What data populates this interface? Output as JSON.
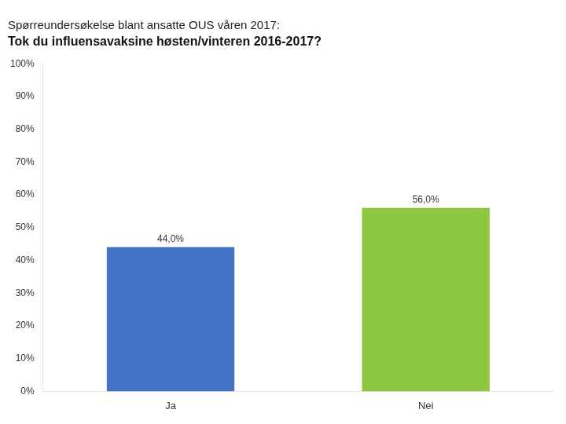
{
  "chart_data": {
    "type": "bar",
    "title": "Spørreundersøkelse blant ansatte OUS våren 2017:",
    "subtitle": "Tok du influensavaksine høsten/vinteren 2016-2017?",
    "categories": [
      "Ja",
      "Nei"
    ],
    "values": [
      44.0,
      56.0
    ],
    "value_labels": [
      "44,0%",
      "56,0%"
    ],
    "data_labels": true,
    "colors": [
      "#4472C4",
      "#8DC63F"
    ],
    "ylim": [
      0,
      100
    ],
    "yticks": [
      {
        "value": 0,
        "label": "0%"
      },
      {
        "value": 10,
        "label": "10%"
      },
      {
        "value": 20,
        "label": "20%"
      },
      {
        "value": 30,
        "label": "30%"
      },
      {
        "value": 40,
        "label": "40%"
      },
      {
        "value": 50,
        "label": "50%"
      },
      {
        "value": 60,
        "label": "60%"
      },
      {
        "value": 70,
        "label": "70%"
      },
      {
        "value": 80,
        "label": "80%"
      },
      {
        "value": 90,
        "label": "90%"
      },
      {
        "value": 100,
        "label": "100%"
      }
    ],
    "grid": false
  }
}
